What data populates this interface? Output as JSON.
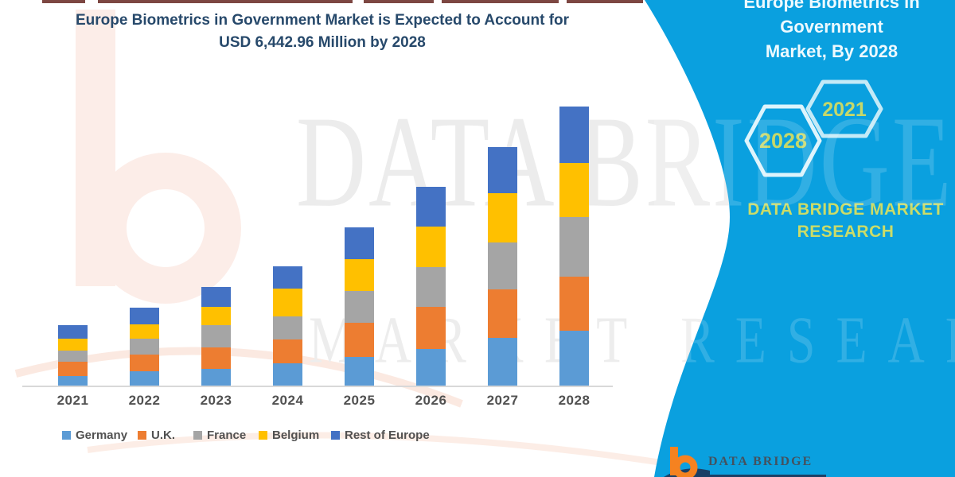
{
  "title": {
    "line1": "Europe Biometrics in Government Market is Expected to Account for",
    "line2": "USD 6,442.96 Million by 2028"
  },
  "watermark": {
    "line1": "DATA BRIDGE",
    "line2": "MARKET RESEARCH"
  },
  "panel": {
    "title_line1": "Europe Biometrics in Government",
    "title_line2": "Market, By 2028",
    "hexagon_years": {
      "back": "2021",
      "front": "2028"
    },
    "brand_line1": "DATA BRIDGE MARKET",
    "brand_line2": "RESEARCH",
    "background_color": "#0AA0DF",
    "year_text_color": "#C6D869"
  },
  "logo": {
    "text": "DATA BRIDGE",
    "b_color": "#F58220",
    "swoosh_color": "#1B3F66"
  },
  "chart_data": {
    "type": "bar",
    "subtype": "stacked-vertical",
    "title": "Europe Biometrics in Government Market is Expected to Account for USD 6,442.96 Million by 2028",
    "unit": "USD Million",
    "categories": [
      "2021",
      "2022",
      "2023",
      "2024",
      "2025",
      "2026",
      "2027",
      "2028"
    ],
    "series": [
      {
        "name": "Germany",
        "color": "#5B9BD5",
        "values": [
          228,
          339,
          394,
          518,
          666,
          851,
          1110,
          1258
        ]
      },
      {
        "name": "U.K.",
        "color": "#ED7D31",
        "values": [
          314,
          383,
          494,
          555,
          777,
          962,
          1110,
          1258
        ]
      },
      {
        "name": "France",
        "color": "#A5A5A5",
        "values": [
          259,
          352,
          513,
          531,
          740,
          925,
          1079,
          1369
        ]
      },
      {
        "name": "Belgium",
        "color": "#FFC000",
        "values": [
          278,
          346,
          413,
          642,
          740,
          925,
          1142,
          1258
        ]
      },
      {
        "name": "Rest of Europe",
        "color": "#4472C4",
        "values": [
          315,
          381,
          468,
          513,
          722,
          925,
          1073,
          1299.96
        ]
      }
    ],
    "totals_estimated": [
      1394,
      1801,
      2282,
      2759,
      3645,
      4588,
      5514,
      6442.96
    ],
    "stated_total_2028": 6442.96,
    "values_estimated_from_pixels": true,
    "xlabel": "",
    "ylabel": "",
    "y_axis_visible": false,
    "grid": false,
    "legend_position": "bottom"
  }
}
